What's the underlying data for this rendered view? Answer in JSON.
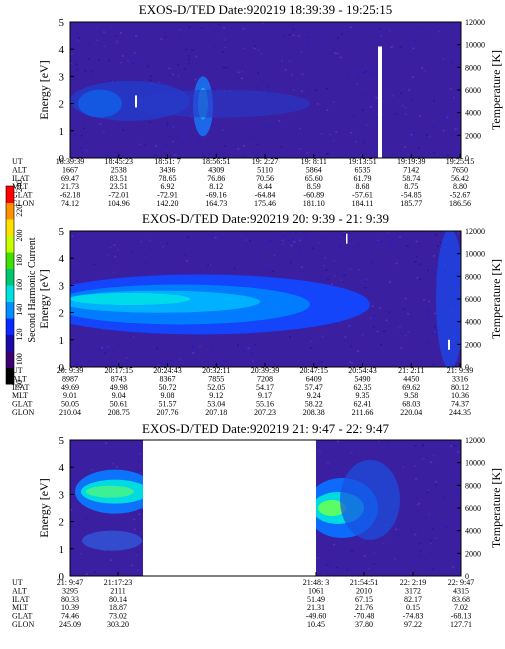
{
  "chart_data": [
    {
      "type": "heatmap",
      "title": "EXOS-D/TED   Date:920219  18:39:39 - 19:25:15",
      "ylabel": "Energy [eV]",
      "y2label": "Temperature [K]",
      "ylim": [
        0,
        5
      ],
      "y2lim": [
        0,
        12000
      ],
      "yticks": [
        "0",
        "1",
        "2",
        "3",
        "4",
        "5"
      ],
      "y2ticks": [
        "0",
        "2000",
        "4000",
        "6000",
        "8000",
        "10000",
        "12000"
      ],
      "table": {
        "row_labels": [
          "UT",
          "ALT",
          "ILAT",
          "MLT",
          "GLAT",
          "GLON"
        ],
        "columns": [
          [
            "18:39:39",
            "1667",
            "69.47",
            "21.73",
            "-62.18",
            "74.12"
          ],
          [
            "18:45:23",
            "2538",
            "83.51",
            "23.51",
            "-72.01",
            "104.96"
          ],
          [
            "18:51: 7",
            "3436",
            "78.65",
            "6.92",
            "-72.91",
            "142.20"
          ],
          [
            "18:56:51",
            "4309",
            "76.86",
            "8.12",
            "-69.16",
            "164.73"
          ],
          [
            "19: 2:27",
            "5110",
            "70.56",
            "8.44",
            "-64.84",
            "175.46"
          ],
          [
            "19: 8:11",
            "5864",
            "65.60",
            "8.59",
            "-60.89",
            "181.10"
          ],
          [
            "19:13:51",
            "6535",
            "61.79",
            "8.68",
            "-57.61",
            "184.11"
          ],
          [
            "19:19:39",
            "7142",
            "58.74",
            "8.75",
            "-54.85",
            "185.77"
          ],
          [
            "19:25:15",
            "7650",
            "56.42",
            "8.80",
            "-52.67",
            "186.56"
          ]
        ]
      }
    },
    {
      "type": "heatmap",
      "title": "EXOS-D/TED   Date:920219  20: 9:39 - 21: 9:39",
      "ylabel": "Energy [eV]",
      "y2label": "Temperature [K]",
      "ylim": [
        0,
        5
      ],
      "y2lim": [
        0,
        12000
      ],
      "yticks": [
        "0",
        "1",
        "2",
        "3",
        "4",
        "5"
      ],
      "y2ticks": [
        "0",
        "2000",
        "4000",
        "6000",
        "8000",
        "10000",
        "12000"
      ],
      "table": {
        "row_labels": [
          "UT",
          "ALT",
          "ILAT",
          "MLT",
          "GLAT",
          "GLON"
        ],
        "columns": [
          [
            "20: 9:39",
            "8987",
            "49.69",
            "9.01",
            "50.05",
            "210.04"
          ],
          [
            "20:17:15",
            "8743",
            "49.98",
            "9.04",
            "50.61",
            "208.75"
          ],
          [
            "20:24:43",
            "8367",
            "50.72",
            "9.08",
            "51.57",
            "207.76"
          ],
          [
            "20:32:11",
            "7855",
            "52.05",
            "9.12",
            "53.04",
            "207.18"
          ],
          [
            "20:39:39",
            "7208",
            "54.17",
            "9.17",
            "55.16",
            "207.23"
          ],
          [
            "20:47:15",
            "6409",
            "57.47",
            "9.24",
            "58.22",
            "208.38"
          ],
          [
            "20:54:43",
            "5490",
            "62.35",
            "9.35",
            "62.41",
            "211.66"
          ],
          [
            "21: 2:11",
            "4450",
            "69.62",
            "9.58",
            "68.03",
            "220.04"
          ],
          [
            "21: 9:39",
            "3316",
            "80.12",
            "10.36",
            "74.37",
            "244.35"
          ]
        ]
      }
    },
    {
      "type": "heatmap",
      "title": "EXOS-D/TED   Date:920219  21: 9:47 - 22: 9:47",
      "ylabel": "Energy [eV]",
      "y2label": "Temperature [K]",
      "ylim": [
        0,
        5
      ],
      "y2lim": [
        0,
        12000
      ],
      "yticks": [
        "0",
        "1",
        "2",
        "3",
        "4",
        "5"
      ],
      "y2ticks": [
        "0",
        "2000",
        "4000",
        "6000",
        "8000",
        "10000",
        "12000"
      ],
      "table": {
        "row_labels": [
          "UT",
          "ALT",
          "ILAT",
          "MLT",
          "GLAT",
          "GLON"
        ],
        "columns": [
          [
            "21: 9:47",
            "3295",
            "80.33",
            "10.39",
            "74.46",
            "245.09"
          ],
          [
            "21:17:23",
            "2111",
            "80.14",
            "18.87",
            "73.02",
            "303.20"
          ],
          [
            "",
            "",
            "",
            "",
            "",
            ""
          ],
          [
            "",
            "",
            "",
            "",
            "",
            ""
          ],
          [
            "",
            "",
            "",
            "",
            "",
            ""
          ],
          [
            "",
            "",
            "",
            "",
            "",
            ""
          ],
          [
            "21:48: 3",
            "1061",
            "51.49",
            "21.31",
            "-49.60",
            "10.45"
          ],
          [
            "21:54:51",
            "2010",
            "67.15",
            "21.76",
            "-70.48",
            "37.80"
          ],
          [
            "22: 2:19",
            "3172",
            "82.17",
            "0.15",
            "-74.83",
            "97.22"
          ],
          [
            "22: 9:47",
            "4315",
            "83.68",
            "7.02",
            "-68.13",
            "127.71"
          ]
        ]
      }
    }
  ],
  "colorbar": {
    "label": "Second Harmonic Current",
    "ticks": [
      "80",
      "100",
      "120",
      "140",
      "160",
      "180",
      "200",
      "220",
      "240"
    ],
    "range": [
      80,
      240
    ],
    "colors": [
      "#000000",
      "#3a0070",
      "#1a0aa8",
      "#0a28ff",
      "#0090ff",
      "#00e0e0",
      "#00c870",
      "#40e000",
      "#c8ff00",
      "#ffe000",
      "#ff9000",
      "#ff0000"
    ]
  }
}
